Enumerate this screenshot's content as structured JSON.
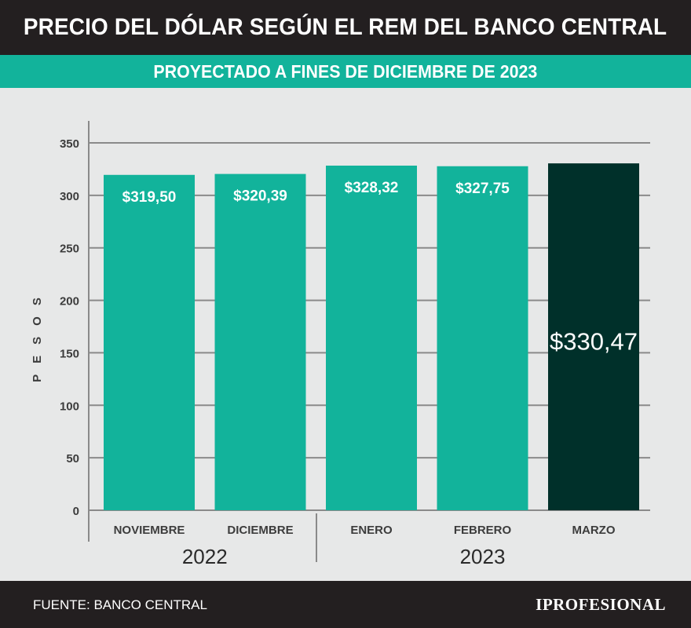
{
  "header": {
    "title": "PRECIO DEL DÓLAR SEGÚN EL REM DEL BANCO CENTRAL",
    "subtitle": "PROYECTADO A FINES DE DICIEMBRE DE 2023"
  },
  "chart_data": {
    "type": "bar",
    "categories": [
      "NOVIEMBRE",
      "DICIEMBRE",
      "ENERO",
      "FEBRERO",
      "MARZO"
    ],
    "values": [
      319.5,
      320.39,
      328.32,
      327.75,
      330.47
    ],
    "data_labels": [
      "$319,50",
      "$320,39",
      "$328,32",
      "$327,75",
      "$330,47"
    ],
    "ylabel": "PESOS",
    "ylim": [
      0,
      350
    ],
    "yticks": [
      0,
      50,
      100,
      150,
      200,
      250,
      300,
      350
    ],
    "grid": true,
    "year_groups": [
      {
        "label": "2022",
        "categories": [
          "NOVIEMBRE",
          "DICIEMBRE"
        ]
      },
      {
        "label": "2023",
        "categories": [
          "ENERO",
          "FEBRERO",
          "MARZO"
        ]
      }
    ],
    "colors": {
      "bar": "#12b39b",
      "highlight": "#00302a",
      "grid": "#8a8a8a",
      "text": "#3c3c3c"
    },
    "highlight_index": 4
  },
  "footer": {
    "source": "FUENTE: BANCO CENTRAL",
    "logo": "IPROFESIONAL"
  }
}
